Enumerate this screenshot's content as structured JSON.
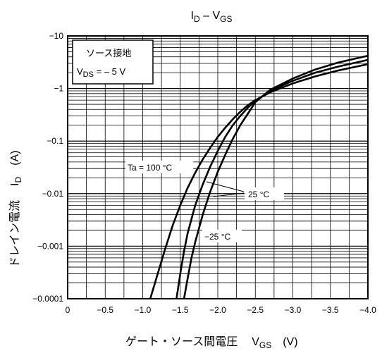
{
  "chart_data": {
    "type": "line",
    "title": "I",
    "title_sub": "D",
    "title_mid": " – V",
    "title_sub2": "GS",
    "xlabel_main": "ゲート・ソース間電圧",
    "xlabel_sym": "V",
    "xlabel_sub": "GS",
    "xlabel_unit": "(V)",
    "ylabel_main": "ドレイン電流",
    "ylabel_sym": "I",
    "ylabel_sub": "D",
    "ylabel_unit": "(A)",
    "x_ticks": [
      "0",
      "−0.5",
      "−1.0",
      "−1.5",
      "−2.0",
      "−2.5",
      "−3.0",
      "−3.5",
      "−4.0"
    ],
    "x_tick_values": [
      0,
      -0.5,
      -1.0,
      -1.5,
      -2.0,
      -2.5,
      -3.0,
      -3.5,
      -4.0
    ],
    "y_ticks": [
      "−10",
      "−1",
      "−0.1",
      "−0.01",
      "−0.001",
      "−0.0001"
    ],
    "y_tick_values": [
      -10,
      -1,
      -0.1,
      -0.01,
      -0.001,
      -0.0001
    ],
    "x_scale": "linear",
    "y_scale": "log",
    "xlim": [
      0,
      -4.0
    ],
    "ylim": [
      -0.0001,
      -10
    ],
    "grid": true,
    "inset": {
      "line1": "ソース接地",
      "line2_sym": "V",
      "line2_sub": "DS",
      "line2_rest": " = – 5 V"
    },
    "annotations": {
      "ta100": "Ta = 100 °C",
      "t25": "25 °C",
      "tm25": "−25 °C"
    },
    "series": [
      {
        "name": "Ta = 100 °C",
        "x": [
          -1.1,
          -1.2,
          -1.3,
          -1.4,
          -1.5,
          -1.6,
          -1.7,
          -1.8,
          -1.9,
          -2.0,
          -2.1,
          -2.2,
          -2.3,
          -2.4,
          -2.5,
          -2.7,
          -3.0,
          -3.3,
          -3.6,
          -4.0
        ],
        "y": [
          -0.0001,
          -0.0003,
          -0.0009,
          -0.0025,
          -0.006,
          -0.013,
          -0.025,
          -0.045,
          -0.075,
          -0.12,
          -0.18,
          -0.26,
          -0.36,
          -0.48,
          -0.6,
          -0.85,
          -1.25,
          -1.7,
          -2.2,
          -2.9
        ]
      },
      {
        "name": "25 °C",
        "x": [
          -1.45,
          -1.5,
          -1.55,
          -1.6,
          -1.7,
          -1.8,
          -1.9,
          -2.0,
          -2.1,
          -2.2,
          -2.3,
          -2.4,
          -2.5,
          -2.7,
          -3.0,
          -3.3,
          -3.6,
          -4.0
        ],
        "y": [
          -0.0001,
          -0.0003,
          -0.0008,
          -0.0018,
          -0.006,
          -0.015,
          -0.033,
          -0.065,
          -0.12,
          -0.2,
          -0.3,
          -0.43,
          -0.58,
          -0.9,
          -1.4,
          -2.0,
          -2.6,
          -3.5
        ]
      },
      {
        "name": "−25 °C",
        "x": [
          -1.55,
          -1.6,
          -1.65,
          -1.7,
          -1.8,
          -1.9,
          -2.0,
          -2.1,
          -2.2,
          -2.3,
          -2.4,
          -2.5,
          -2.7,
          -3.0,
          -3.3,
          -3.6,
          -4.0
        ],
        "y": [
          -0.0001,
          -0.00025,
          -0.0006,
          -0.0012,
          -0.004,
          -0.011,
          -0.026,
          -0.055,
          -0.11,
          -0.2,
          -0.33,
          -0.55,
          -0.95,
          -1.55,
          -2.3,
          -3.1,
          -4.2
        ]
      }
    ]
  }
}
